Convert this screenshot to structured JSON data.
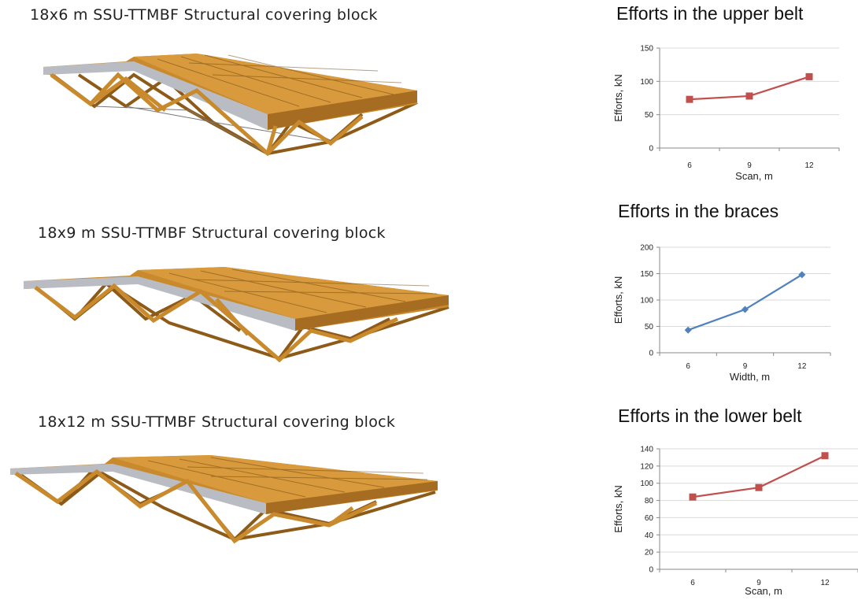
{
  "blocks": [
    {
      "title": "18x6 m SSU-TTMBF Structural covering block"
    },
    {
      "title": "18x9 m SSU-TTMBF Structural covering block"
    },
    {
      "title": "18x12 m SSU-TTMBF Structural covering block"
    }
  ],
  "colors": {
    "timber": "#C98A2E",
    "timber_dark": "#8E5A17",
    "steel": "#B9BDC3",
    "series_red": "#C0504D",
    "series_blue": "#4F81BD",
    "grid": "#D9D9D9"
  },
  "chart_data": [
    {
      "type": "line",
      "title": "Efforts in the upper belt",
      "xlabel": "Scan, m",
      "ylabel": "Efforts, kN",
      "categories": [
        "6",
        "9",
        "12"
      ],
      "values": [
        73,
        78,
        107
      ],
      "yticks": [
        0,
        50,
        100,
        150
      ],
      "ylim": [
        0,
        150
      ],
      "marker": "square",
      "color": "#C0504D",
      "grid": true
    },
    {
      "type": "line",
      "title": "Efforts in the braces",
      "xlabel": "Width, m",
      "ylabel": "Efforts, kN",
      "categories": [
        "6",
        "9",
        "12"
      ],
      "values": [
        43,
        82,
        148
      ],
      "yticks": [
        0,
        50,
        100,
        150,
        200
      ],
      "ylim": [
        0,
        200
      ],
      "marker": "diamond",
      "color": "#4F81BD",
      "grid": true
    },
    {
      "type": "line",
      "title": "Efforts in the lower belt",
      "xlabel": "Scan, m",
      "ylabel": "Efforts, kN",
      "categories": [
        "6",
        "9",
        "12"
      ],
      "values": [
        84,
        95,
        132
      ],
      "yticks": [
        0,
        20,
        40,
        60,
        80,
        100,
        120,
        140
      ],
      "ylim": [
        0,
        140
      ],
      "marker": "square",
      "color": "#C0504D",
      "grid": true
    }
  ]
}
